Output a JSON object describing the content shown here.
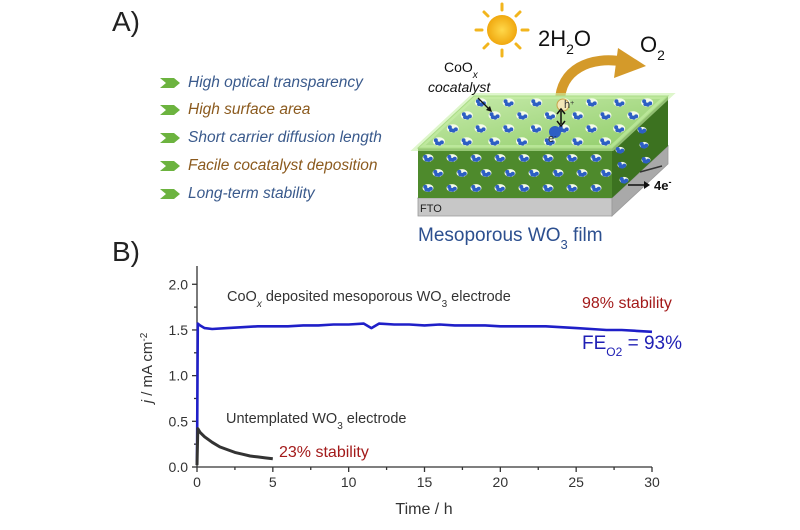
{
  "panel_a": {
    "label": "A)",
    "bullets": [
      {
        "text": "High optical transparency",
        "color": "#3a5a8c"
      },
      {
        "text": "High surface area",
        "color": "#8b5a1e"
      },
      {
        "text": "Short carrier diffusion length",
        "color": "#3a5a8c"
      },
      {
        "text": "Facile cocatalyst deposition",
        "color": "#8b5a1e"
      },
      {
        "text": "Long-term stability",
        "color": "#3a5a8c"
      }
    ],
    "cocatalyst_label_line1": "CoO",
    "cocatalyst_label_sub": "x",
    "cocatalyst_label_line2": "cocatalyst",
    "reactant": "2H",
    "reactant_sub": "2",
    "reactant_end": "O",
    "product": "O",
    "product_sub": "2",
    "hole_label": "h",
    "hole_sup": "+",
    "electron_label": "e",
    "electron_sup": "-",
    "electrons_out": "4e",
    "electrons_out_sup": "-",
    "substrate_label": "FTO",
    "film_caption": "Mesoporous WO",
    "film_caption_sub": "3",
    "film_caption_end": " film",
    "colors": {
      "film_green": "#4e8a2c",
      "film_light": "#b9e29a",
      "dot_blue": "#2d5fc4",
      "sun": "#f2b51d",
      "arrow": "#d49a2a"
    }
  },
  "panel_b": {
    "label": "B)",
    "annotation_top": "CoO",
    "annotation_top_sub": "x",
    "annotation_top_mid": " deposited mesoporous WO",
    "annotation_top_sub2": "3",
    "annotation_top_end": " electrode",
    "annotation_bottom": "Untemplated WO",
    "annotation_bottom_sub": "3",
    "annotation_bottom_end": " electrode",
    "stability_top": "98% stability",
    "stability_bottom": "23% stability",
    "fe_label": "FE",
    "fe_sub": "O2",
    "fe_value": " = 93%"
  },
  "chart_data": {
    "type": "line",
    "xlabel": "Time / h",
    "ylabel": "j / mA cm-2",
    "xlim": [
      0,
      30
    ],
    "ylim": [
      0,
      2.2
    ],
    "x_ticks": [
      "0",
      "5",
      "10",
      "15",
      "20",
      "25",
      "30"
    ],
    "y_ticks": [
      "0.0",
      "0.5",
      "1.0",
      "1.5",
      "2.0"
    ],
    "series": [
      {
        "color": "#1f1fc8",
        "x": [
          0,
          0.05,
          0.2,
          0.5,
          1,
          2,
          3,
          4,
          5,
          6,
          7,
          8,
          9,
          10,
          11,
          11.5,
          12,
          13,
          14,
          15,
          16,
          17,
          18,
          19,
          20,
          21,
          22,
          23,
          24,
          25,
          26,
          27,
          28,
          29,
          30
        ],
        "y": [
          0.05,
          1.57,
          1.55,
          1.52,
          1.51,
          1.52,
          1.53,
          1.54,
          1.54,
          1.54,
          1.55,
          1.55,
          1.56,
          1.56,
          1.57,
          1.52,
          1.57,
          1.56,
          1.56,
          1.55,
          1.56,
          1.55,
          1.55,
          1.55,
          1.54,
          1.54,
          1.54,
          1.54,
          1.53,
          1.52,
          1.51,
          1.5,
          1.5,
          1.49,
          1.48
        ]
      },
      {
        "color": "#333333",
        "x": [
          0,
          0.05,
          0.2,
          0.5,
          1,
          1.5,
          2,
          2.5,
          3,
          3.5,
          4,
          4.5,
          5
        ],
        "y": [
          0.02,
          0.42,
          0.38,
          0.33,
          0.27,
          0.22,
          0.19,
          0.16,
          0.14,
          0.12,
          0.11,
          0.1,
          0.09
        ]
      }
    ]
  }
}
